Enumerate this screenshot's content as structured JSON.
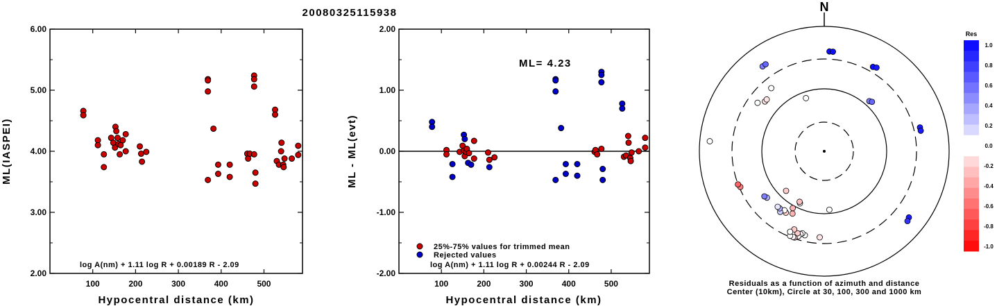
{
  "title": "20080325115938",
  "chart_data": [
    {
      "type": "scatter",
      "ylabel": "ML(IASPEI)",
      "xlabel": "Hypocentral distance (km)",
      "xlim": [
        0,
        590
      ],
      "ylim": [
        2.0,
        6.0
      ],
      "x_ticks": [
        "100",
        "200",
        "300",
        "400",
        "500"
      ],
      "y_ticks": [
        "2.00",
        "3.00",
        "4.00",
        "5.00",
        "6.00"
      ],
      "formula": "log A(nm) + 1.11 log R + 0.00189 R - 2.09",
      "marker_color": "#cc0000",
      "points": [
        [
          78,
          4.66
        ],
        [
          78,
          4.59
        ],
        [
          112,
          4.18
        ],
        [
          112,
          4.1
        ],
        [
          126,
          3.74
        ],
        [
          126,
          3.95
        ],
        [
          143,
          4.22
        ],
        [
          148,
          4.14
        ],
        [
          152,
          4.06
        ],
        [
          153,
          4.4
        ],
        [
          155,
          4.33
        ],
        [
          158,
          4.22
        ],
        [
          160,
          4.12
        ],
        [
          163,
          3.95
        ],
        [
          165,
          4.1
        ],
        [
          170,
          4.18
        ],
        [
          177,
          4.0
        ],
        [
          177,
          4.28
        ],
        [
          210,
          4.08
        ],
        [
          213,
          3.96
        ],
        [
          215,
          3.83
        ],
        [
          225,
          3.99
        ],
        [
          369,
          5.18
        ],
        [
          369,
          5.16
        ],
        [
          369,
          4.98
        ],
        [
          369,
          3.53
        ],
        [
          382,
          4.37
        ],
        [
          393,
          3.78
        ],
        [
          393,
          3.63
        ],
        [
          420,
          3.78
        ],
        [
          420,
          3.58
        ],
        [
          461,
          3.96
        ],
        [
          463,
          3.88
        ],
        [
          467,
          3.96
        ],
        [
          477,
          5.24
        ],
        [
          477,
          5.18
        ],
        [
          477,
          5.06
        ],
        [
          477,
          3.95
        ],
        [
          480,
          3.65
        ],
        [
          480,
          3.47
        ],
        [
          526,
          4.68
        ],
        [
          526,
          4.6
        ],
        [
          530,
          3.84
        ],
        [
          535,
          3.78
        ],
        [
          540,
          4.0
        ],
        [
          541,
          4.14
        ],
        [
          545,
          3.78
        ],
        [
          546,
          3.74
        ],
        [
          548,
          3.88
        ],
        [
          565,
          3.88
        ],
        [
          580,
          4.09
        ],
        [
          580,
          3.94
        ]
      ]
    },
    {
      "type": "scatter",
      "ylabel": "ML - ML(evt)",
      "xlabel": "Hypocentral distance (km)",
      "xlim": [
        0,
        590
      ],
      "ylim": [
        -2.0,
        2.0
      ],
      "x_ticks": [
        "100",
        "200",
        "300",
        "400",
        "500"
      ],
      "y_ticks": [
        "-2.00",
        "-1.00",
        "0.00",
        "1.00",
        "2.00"
      ],
      "annotation": "ML= 4.23",
      "formula": "log A(nm) + 1.11 log R + 0.00244 R - 2.09",
      "legend": [
        "25%-75% values for trimmed mean",
        "Rejected values"
      ],
      "series": [
        {
          "name": "25%-75% values for trimmed mean",
          "color": "#cc0000",
          "points": [
            [
              112,
              0.02
            ],
            [
              112,
              -0.05
            ],
            [
              143,
              -0.01
            ],
            [
              150,
              0.09
            ],
            [
              153,
              0.01
            ],
            [
              155,
              -0.08
            ],
            [
              158,
              -0.01
            ],
            [
              160,
              0.04
            ],
            [
              165,
              -0.03
            ],
            [
              177,
              0.17
            ],
            [
              177,
              -0.12
            ],
            [
              210,
              -0.02
            ],
            [
              213,
              -0.14
            ],
            [
              225,
              -0.1
            ],
            [
              461,
              -0.01
            ],
            [
              463,
              0.02
            ],
            [
              467,
              -0.05
            ],
            [
              477,
              0.04
            ],
            [
              530,
              -0.09
            ],
            [
              535,
              -0.07
            ],
            [
              540,
              0.25
            ],
            [
              541,
              0.14
            ],
            [
              545,
              -0.11
            ],
            [
              546,
              -0.16
            ],
            [
              548,
              -0.02
            ],
            [
              565,
              0.0
            ],
            [
              580,
              0.22
            ],
            [
              580,
              0.06
            ]
          ]
        },
        {
          "name": "Rejected values",
          "color": "#0000cc",
          "points": [
            [
              78,
              0.48
            ],
            [
              78,
              0.4
            ],
            [
              126,
              -0.21
            ],
            [
              126,
              -0.42
            ],
            [
              153,
              0.27
            ],
            [
              155,
              0.2
            ],
            [
              163,
              -0.19
            ],
            [
              170,
              -0.22
            ],
            [
              213,
              -0.26
            ],
            [
              369,
              1.18
            ],
            [
              369,
              1.16
            ],
            [
              369,
              0.98
            ],
            [
              369,
              -0.47
            ],
            [
              382,
              0.38
            ],
            [
              393,
              -0.21
            ],
            [
              393,
              -0.37
            ],
            [
              420,
              -0.21
            ],
            [
              420,
              -0.4
            ],
            [
              477,
              1.3
            ],
            [
              477,
              1.25
            ],
            [
              477,
              1.13
            ],
            [
              480,
              -0.29
            ],
            [
              480,
              -0.47
            ],
            [
              526,
              0.78
            ],
            [
              526,
              0.7
            ]
          ]
        }
      ]
    },
    {
      "type": "polar-scatter",
      "north_label": "N",
      "caption": [
        "Residuals as a function of azimuth and distance",
        "Center (10km), Circle at 30, 100, 300 and 1000 km"
      ],
      "colorbar": {
        "title": "Res",
        "labels": [
          "1.0",
          "0.8",
          "0.6",
          "0.4",
          "0.2",
          "0.0",
          "-0.2",
          "-0.4",
          "-0.6",
          "-0.8",
          "-1.0"
        ]
      },
      "points": [
        [
          3,
          0.8,
          0.95
        ],
        [
          5,
          0.8,
          0.95
        ],
        [
          30,
          0.78,
          0.95
        ],
        [
          32,
          0.79,
          0.9
        ],
        [
          42,
          0.54,
          0.5
        ],
        [
          44,
          0.55,
          0.6
        ],
        [
          76,
          0.79,
          0.9
        ],
        [
          78,
          0.79,
          0.9
        ],
        [
          128,
          0.86,
          0.9
        ],
        [
          130,
          0.87,
          0.8
        ],
        [
          175,
          0.47,
          0.05
        ],
        [
          183,
          0.69,
          -0.1
        ],
        [
          193,
          0.69,
          0.0
        ],
        [
          195,
          0.68,
          0.05
        ],
        [
          196,
          0.69,
          0.0
        ],
        [
          197,
          0.71,
          -0.05
        ],
        [
          198,
          0.69,
          -0.2
        ],
        [
          199,
          0.73,
          -0.3
        ],
        [
          200,
          0.73,
          0.05
        ],
        [
          201,
          0.67,
          -0.2
        ],
        [
          202,
          0.73,
          0.0
        ],
        [
          203,
          0.7,
          -0.05
        ],
        [
          205,
          0.46,
          0.0
        ],
        [
          206,
          0.45,
          -0.25
        ],
        [
          207,
          0.56,
          -0.3
        ],
        [
          209,
          0.52,
          -0.3
        ],
        [
          212,
          0.58,
          -0.2
        ],
        [
          214,
          0.57,
          0.05
        ],
        [
          216,
          0.6,
          0.2
        ],
        [
          218,
          0.58,
          0.3
        ],
        [
          220,
          0.58,
          0.1
        ],
        [
          224,
          0.44,
          -0.2
        ],
        [
          231,
          0.59,
          0.3
        ],
        [
          233,
          0.6,
          0.5
        ],
        [
          247,
          0.73,
          -0.5
        ],
        [
          249,
          0.74,
          -0.6
        ],
        [
          275,
          0.92,
          0.0
        ],
        [
          306,
          0.66,
          0.0
        ],
        [
          310,
          0.62,
          -0.1
        ],
        [
          312,
          0.62,
          -0.1
        ],
        [
          320,
          0.66,
          0.0
        ],
        [
          324,
          0.84,
          0.5
        ],
        [
          326,
          0.84,
          0.6
        ],
        [
          341,
          0.45,
          0.0
        ]
      ]
    }
  ]
}
